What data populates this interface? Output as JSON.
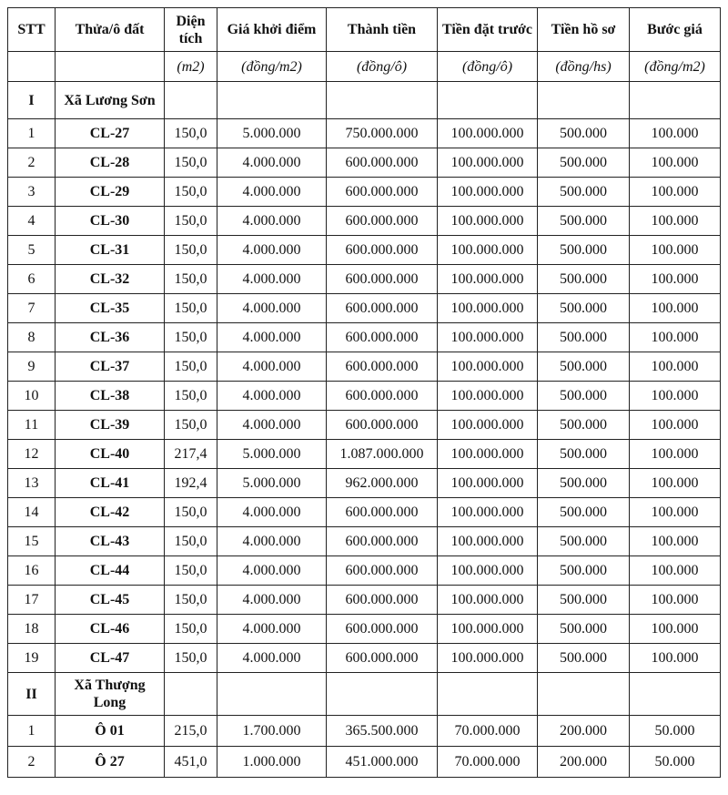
{
  "headers": [
    "STT",
    "Thửa/ô đất",
    "Diện tích",
    "Giá khởi điểm",
    "Thành tiền",
    "Tiền đặt trước",
    "Tiền hồ sơ",
    "Bước giá"
  ],
  "units": [
    "",
    "",
    "(m2)",
    "(đồng/m2)",
    "(đồng/ô)",
    "(đồng/ô)",
    "(đồng/hs)",
    "(đồng/m2)"
  ],
  "sections": [
    {
      "roman": "I",
      "name": "Xã Lương Sơn",
      "rows": [
        [
          "1",
          "CL-27",
          "150,0",
          "5.000.000",
          "750.000.000",
          "100.000.000",
          "500.000",
          "100.000"
        ],
        [
          "2",
          "CL-28",
          "150,0",
          "4.000.000",
          "600.000.000",
          "100.000.000",
          "500.000",
          "100.000"
        ],
        [
          "3",
          "CL-29",
          "150,0",
          "4.000.000",
          "600.000.000",
          "100.000.000",
          "500.000",
          "100.000"
        ],
        [
          "4",
          "CL-30",
          "150,0",
          "4.000.000",
          "600.000.000",
          "100.000.000",
          "500.000",
          "100.000"
        ],
        [
          "5",
          "CL-31",
          "150,0",
          "4.000.000",
          "600.000.000",
          "100.000.000",
          "500.000",
          "100.000"
        ],
        [
          "6",
          "CL-32",
          "150,0",
          "4.000.000",
          "600.000.000",
          "100.000.000",
          "500.000",
          "100.000"
        ],
        [
          "7",
          "CL-35",
          "150,0",
          "4.000.000",
          "600.000.000",
          "100.000.000",
          "500.000",
          "100.000"
        ],
        [
          "8",
          "CL-36",
          "150,0",
          "4.000.000",
          "600.000.000",
          "100.000.000",
          "500.000",
          "100.000"
        ],
        [
          "9",
          "CL-37",
          "150,0",
          "4.000.000",
          "600.000.000",
          "100.000.000",
          "500.000",
          "100.000"
        ],
        [
          "10",
          "CL-38",
          "150,0",
          "4.000.000",
          "600.000.000",
          "100.000.000",
          "500.000",
          "100.000"
        ],
        [
          "11",
          "CL-39",
          "150,0",
          "4.000.000",
          "600.000.000",
          "100.000.000",
          "500.000",
          "100.000"
        ],
        [
          "12",
          "CL-40",
          "217,4",
          "5.000.000",
          "1.087.000.000",
          "100.000.000",
          "500.000",
          "100.000"
        ],
        [
          "13",
          "CL-41",
          "192,4",
          "5.000.000",
          "962.000.000",
          "100.000.000",
          "500.000",
          "100.000"
        ],
        [
          "14",
          "CL-42",
          "150,0",
          "4.000.000",
          "600.000.000",
          "100.000.000",
          "500.000",
          "100.000"
        ],
        [
          "15",
          "CL-43",
          "150,0",
          "4.000.000",
          "600.000.000",
          "100.000.000",
          "500.000",
          "100.000"
        ],
        [
          "16",
          "CL-44",
          "150,0",
          "4.000.000",
          "600.000.000",
          "100.000.000",
          "500.000",
          "100.000"
        ],
        [
          "17",
          "CL-45",
          "150,0",
          "4.000.000",
          "600.000.000",
          "100.000.000",
          "500.000",
          "100.000"
        ],
        [
          "18",
          "CL-46",
          "150,0",
          "4.000.000",
          "600.000.000",
          "100.000.000",
          "500.000",
          "100.000"
        ],
        [
          "19",
          "CL-47",
          "150,0",
          "4.000.000",
          "600.000.000",
          "100.000.000",
          "500.000",
          "100.000"
        ]
      ]
    },
    {
      "roman": "II",
      "name": "Xã Thượng Long",
      "rows": [
        [
          "1",
          "Ô 01",
          "215,0",
          "1.700.000",
          "365.500.000",
          "70.000.000",
          "200.000",
          "50.000"
        ],
        [
          "2",
          "Ô 27",
          "451,0",
          "1.000.000",
          "451.000.000",
          "70.000.000",
          "200.000",
          "50.000"
        ]
      ]
    }
  ]
}
